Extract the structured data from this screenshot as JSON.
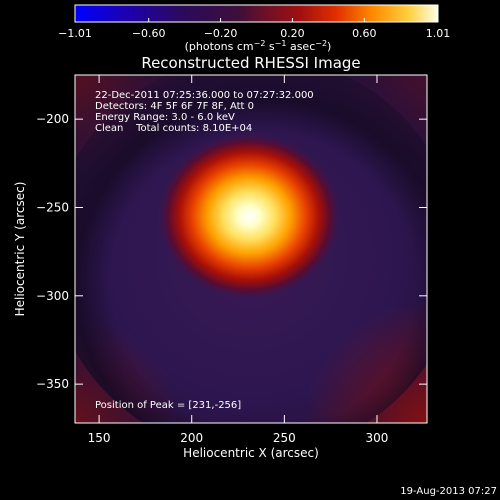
{
  "chart_data": {
    "type": "heatmap",
    "title": "Reconstructed RHESSI Image",
    "xlabel": "Heliocentric X (arcsec)",
    "ylabel": "Heliocentric Y (arcsec)",
    "xlim": [
      137,
      327
    ],
    "ylim": [
      -372,
      -175
    ],
    "x_ticks": [
      {
        "value": 150,
        "label": "150"
      },
      {
        "value": 200,
        "label": "200"
      },
      {
        "value": 250,
        "label": "250"
      },
      {
        "value": 300,
        "label": "300"
      }
    ],
    "y_ticks": [
      {
        "value": -200,
        "label": "−200"
      },
      {
        "value": -250,
        "label": "−250"
      },
      {
        "value": -300,
        "label": "−300"
      },
      {
        "value": -350,
        "label": "−350"
      }
    ],
    "peak": {
      "x": 231,
      "y": -256
    },
    "colorbar": {
      "min": -1.01,
      "max": 1.01,
      "ticks": [
        {
          "value": -1.01,
          "label": "−1.01"
        },
        {
          "value": -0.6,
          "label": "−0.60"
        },
        {
          "value": -0.2,
          "label": "−0.20"
        },
        {
          "value": 0.2,
          "label": "0.20"
        },
        {
          "value": 0.6,
          "label": "0.60"
        },
        {
          "value": 1.01,
          "label": "1.01"
        }
      ],
      "unit_main": "(photons cm",
      "unit_exp1": "−2",
      "unit_mid": " s",
      "unit_exp2": "−1",
      "unit_mid2": " asec",
      "unit_exp3": "−2",
      "unit_end": ")",
      "colors": [
        "#0000ff",
        "#1a0050",
        "#2a1040",
        "#661133",
        "#cc2200",
        "#ff8800",
        "#ffff66",
        "#ffffff"
      ]
    },
    "annotations": {
      "time_range": "22-Dec-2011 07:25:36.000 to 07:27:32.000",
      "detectors": "Detectors: 4F 5F 6F 7F 8F, Att 0",
      "energy": "Energy Range: 3.0 - 6.0 keV",
      "clean": "Clean    Total counts: 8.10E+04",
      "peak_text": "Position of Peak = [231,-256]"
    }
  },
  "footer": {
    "timestamp": "19-Aug-2013 07:27"
  }
}
